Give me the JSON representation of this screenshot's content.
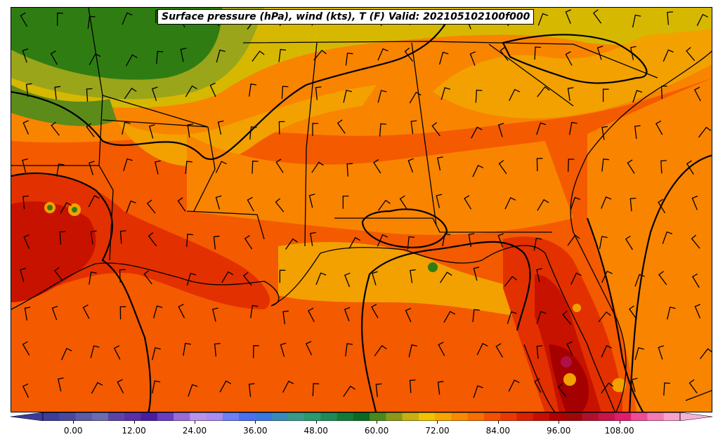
{
  "title": "Surface pressure (hPa), wind (kts), T (F) Valid: 202105102100f000",
  "colorbar": {
    "ticks": [
      "0.00",
      "12.00",
      "24.00",
      "36.00",
      "48.00",
      "60.00",
      "72.00",
      "84.00",
      "96.00",
      "108.00"
    ],
    "min": -6,
    "max": 120,
    "step": 3,
    "colors": [
      "#3d3d9a",
      "#48489e",
      "#5b5ba8",
      "#6b6bb0",
      "#5c43a7",
      "#5a2fa8",
      "#4b1ea1",
      "#6a3dc0",
      "#9a6ad8",
      "#b993ea",
      "#a98df0",
      "#6f7ff6",
      "#4a6ff2",
      "#3a78e0",
      "#3a8ab8",
      "#3a9a8a",
      "#2a9a70",
      "#1f8a55",
      "#127a38",
      "#0a6a22",
      "#4a8a1c",
      "#8a9a18",
      "#c8b010",
      "#f2c200",
      "#f7a500",
      "#f98a00",
      "#f86e00",
      "#f45000",
      "#ec3800",
      "#dc2000",
      "#c80e00",
      "#b00000",
      "#a00808",
      "#b0102a",
      "#c8144a",
      "#e01d6a",
      "#f04c96",
      "#f77ab4",
      "#f8a2cc"
    ]
  },
  "fields": {
    "palette": {
      "t50": "#2f7d12",
      "t55": "#5c8b1a",
      "t60": "#9aa51a",
      "t65": "#d7b800",
      "t70": "#f2a100",
      "t75": "#f98400",
      "t80": "#f45a00",
      "t85": "#e33000",
      "t90": "#c81200",
      "t95": "#a40000",
      "t100": "#b0104a",
      "t105": "#d8207a",
      "isobar": "#000000",
      "state_line": "#000000",
      "barb": "#000000"
    }
  },
  "barbs": {
    "rows": 11,
    "cols": 22
  }
}
